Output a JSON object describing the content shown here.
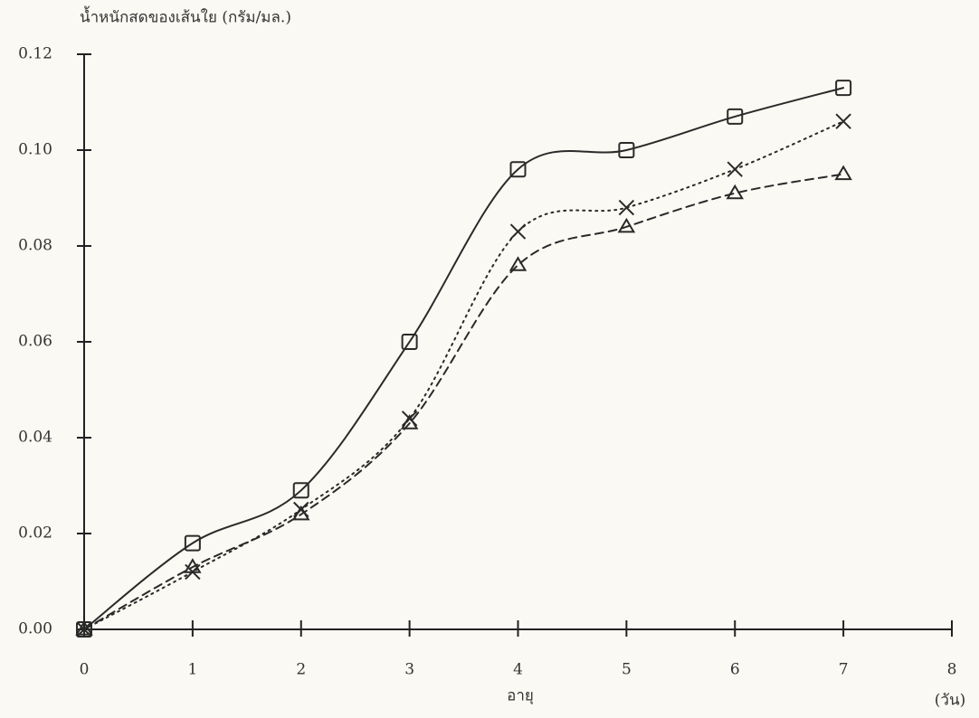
{
  "chart_data": {
    "type": "line",
    "y_label": "น้ำหนักสดของเส้นใย (กรัม/มล.)",
    "x_label": "อายุ",
    "x_unit": "(วัน)",
    "x": [
      0,
      1,
      2,
      3,
      4,
      5,
      6,
      7
    ],
    "xlim": [
      0,
      8
    ],
    "xticks": [
      0,
      1,
      2,
      3,
      4,
      5,
      6,
      7,
      8
    ],
    "ylim": [
      0,
      0.12
    ],
    "yticks": [
      {
        "value": 0,
        "label": "0.00"
      },
      {
        "value": 0.02,
        "label": "0.02"
      },
      {
        "value": 0.04,
        "label": "0.04"
      },
      {
        "value": 0.06,
        "label": "0.06"
      },
      {
        "value": 0.08,
        "label": "0.08"
      },
      {
        "value": 0.1,
        "label": "0.10"
      },
      {
        "value": 0.12,
        "label": "0.12"
      }
    ],
    "series": [
      {
        "color": "#2a2a2a",
        "marker": "square",
        "dash": "solid",
        "values": [
          0,
          0.018,
          0.029,
          0.06,
          0.096,
          0.1,
          0.107,
          0.113
        ]
      },
      {
        "color": "#2a2a2a",
        "marker": "x",
        "dash": "dotted",
        "values": [
          0,
          0.012,
          0.025,
          0.044,
          0.083,
          0.088,
          0.096,
          0.106
        ]
      },
      {
        "color": "#2a2a2a",
        "marker": "triangle",
        "dash": "dashed",
        "values": [
          0,
          0.013,
          0.024,
          0.043,
          0.076,
          0.084,
          0.091,
          0.095
        ]
      }
    ]
  }
}
